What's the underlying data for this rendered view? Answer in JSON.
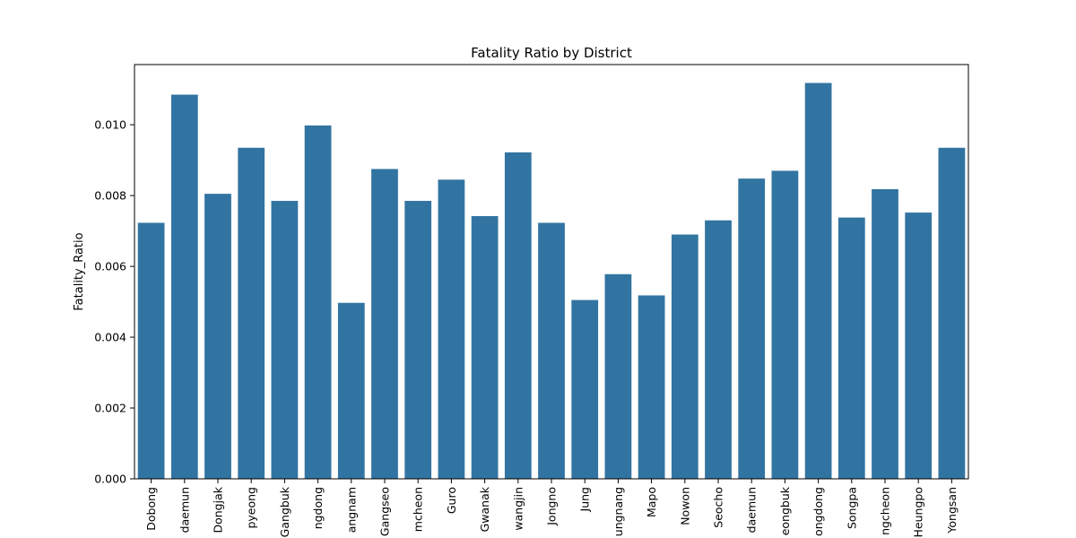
{
  "chart_data": {
    "type": "bar",
    "title": "Fatality Ratio by District",
    "xlabel": "",
    "ylabel": "Fatality_Ratio",
    "ylim": [
      0,
      0.0117
    ],
    "yticks": [
      "0.000",
      "0.002",
      "0.004",
      "0.006",
      "0.008",
      "0.010"
    ],
    "ytick_values": [
      0,
      0.002,
      0.004,
      0.006,
      0.008,
      0.01
    ],
    "bar_color": "#3274a1",
    "categories": [
      "Dobong",
      "daemun",
      "Dongjak",
      "pyeong",
      "Gangbuk",
      "ngdong",
      "angnam",
      "Gangseo",
      "mcheon",
      "Guro",
      "Gwanak",
      "wangjin",
      "Jongno",
      "Jung",
      "ungnang",
      "Mapo",
      "Nowon",
      "Seocho",
      "daemun",
      "eongbuk",
      "ongdong",
      "Songpa",
      "ngcheon",
      "Heungpo",
      "Yongsan"
    ],
    "values": [
      0.00723,
      0.01085,
      0.00805,
      0.00935,
      0.00785,
      0.00998,
      0.00497,
      0.00875,
      0.00785,
      0.00845,
      0.00742,
      0.00922,
      0.00723,
      0.00505,
      0.00578,
      0.00518,
      0.0069,
      0.0073,
      0.00848,
      0.0087,
      0.01118,
      0.00738,
      0.00818,
      0.00752,
      0.00935
    ]
  }
}
